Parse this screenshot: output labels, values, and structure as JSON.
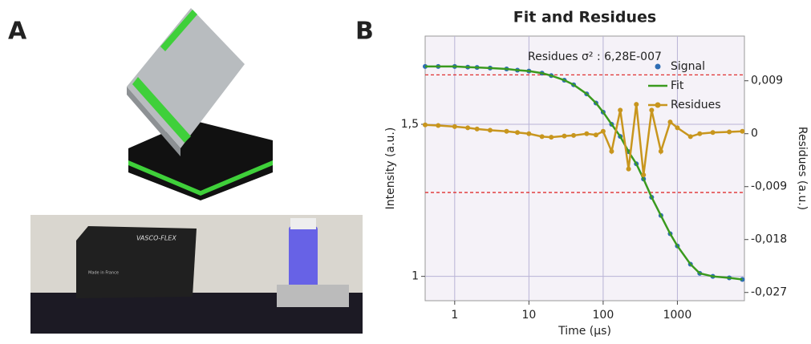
{
  "panel_labels": [
    "A",
    "B"
  ],
  "photo_text": [
    "VASCO-FLEX",
    "Made in France"
  ],
  "chart_data": {
    "type": "line",
    "title": "Fit and Residues",
    "annotation": "Residues σ² : 6,28E-007",
    "xlabel": "Time (µs)",
    "ylabel": "Intensity (a.u.)",
    "y2label": "Residues (a.u.)",
    "xscale": "log",
    "grid": true,
    "legend": "upper right",
    "xlim": [
      0.4,
      8000
    ],
    "xticks": [
      1,
      10,
      100,
      1000
    ],
    "ylim": [
      0.92,
      1.79
    ],
    "yticks": [
      1,
      {
        "value": 1.5,
        "label": "1,5"
      }
    ],
    "y2lim": [
      -0.0284,
      0.0166
    ],
    "y2ticks": [
      {
        "value": -0.027,
        "label": "-0,027"
      },
      {
        "value": -0.018,
        "label": "-0,018"
      },
      {
        "value": -0.009,
        "label": "-0,009"
      },
      0,
      {
        "value": 0.009,
        "label": "0,009"
      }
    ],
    "threshold_lines": {
      "axis": "y2",
      "color": "#e03030",
      "values": [
        0.01,
        -0.01
      ]
    },
    "x": [
      0.4,
      0.6,
      1,
      1.5,
      2,
      3,
      5,
      7,
      10,
      15,
      20,
      30,
      40,
      60,
      80,
      100,
      130,
      170,
      220,
      280,
      350,
      450,
      600,
      800,
      1000,
      1500,
      2000,
      3000,
      5000,
      7500
    ],
    "series": [
      {
        "name": "Signal",
        "color": "#2e6db4",
        "marker": "dot",
        "values": [
          1.69,
          1.69,
          1.69,
          1.688,
          1.687,
          1.685,
          1.682,
          1.678,
          1.675,
          1.668,
          1.66,
          1.645,
          1.63,
          1.6,
          1.57,
          1.54,
          1.5,
          1.46,
          1.41,
          1.37,
          1.32,
          1.26,
          1.2,
          1.14,
          1.1,
          1.04,
          1.01,
          1.0,
          0.995,
          0.99
        ]
      },
      {
        "name": "Fit",
        "color": "#3a9a1e",
        "marker": "line",
        "values": [
          1.69,
          1.69,
          1.69,
          1.688,
          1.687,
          1.685,
          1.682,
          1.678,
          1.675,
          1.668,
          1.66,
          1.645,
          1.63,
          1.6,
          1.57,
          1.54,
          1.5,
          1.46,
          1.41,
          1.37,
          1.32,
          1.26,
          1.2,
          1.14,
          1.1,
          1.04,
          1.01,
          1.0,
          0.995,
          0.99
        ]
      },
      {
        "name": "Residues",
        "color": "#c8961e",
        "marker": "line-dot",
        "axis": "y2",
        "values": [
          0.0015,
          0.0014,
          0.0012,
          0.001,
          0.0008,
          0.0006,
          0.0004,
          0.0002,
          0,
          -0.0005,
          -0.0006,
          -0.0004,
          -0.0003,
          0,
          -0.0002,
          0.0004,
          -0.003,
          0.004,
          -0.006,
          0.005,
          -0.007,
          0.004,
          -0.003,
          0.002,
          0.001,
          -0.0005,
          0,
          0.0002,
          0.0003,
          0.0004
        ]
      }
    ]
  }
}
